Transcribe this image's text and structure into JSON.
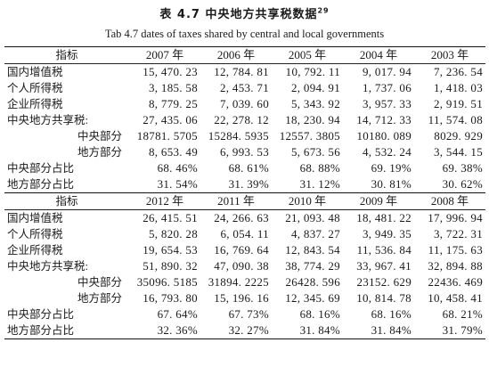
{
  "title_cn": "表 4.7  中央地方共享税数据",
  "title_cn_sup": "29",
  "title_en": "Tab 4.7 dates of taxes shared by central and local governments",
  "block1": {
    "header": {
      "label": "指标",
      "years": [
        "2007 年",
        "2006 年",
        "2005 年",
        "2004 年",
        "2003 年"
      ]
    },
    "rows": [
      {
        "label": "国内增值税",
        "values": [
          "15, 470. 23",
          "12, 784. 81",
          "10, 792. 11",
          "9, 017. 94",
          "7, 236. 54"
        ]
      },
      {
        "label": "个人所得税",
        "values": [
          "3, 185. 58",
          "2, 453. 71",
          "2, 094. 91",
          "1, 737. 06",
          "1, 418. 03"
        ]
      },
      {
        "label": "企业所得税",
        "values": [
          "8, 779. 25",
          "7, 039. 60",
          "5, 343. 92",
          "3, 957. 33",
          "2, 919. 51"
        ]
      },
      {
        "label": "中央地方共享税:",
        "values": [
          "27, 435. 06",
          "22, 278. 12",
          "18, 230. 94",
          "14, 712. 33",
          "11, 574. 08"
        ]
      },
      {
        "label": "中央部分",
        "values": [
          "18781. 5705",
          "15284. 5935",
          "12557. 3805",
          "10180. 089",
          "8029. 929"
        ]
      },
      {
        "label": "地方部分",
        "values": [
          "8, 653. 49",
          "6, 993. 53",
          "5, 673. 56",
          "4, 532. 24",
          "3, 544. 15"
        ]
      },
      {
        "label": "中央部分占比",
        "values": [
          "68. 46%",
          "68. 61%",
          "68. 88%",
          "69. 19%",
          "69. 38%"
        ]
      },
      {
        "label": "地方部分占比",
        "values": [
          "31. 54%",
          "31. 39%",
          "31. 12%",
          "30. 81%",
          "30. 62%"
        ]
      }
    ]
  },
  "block2": {
    "header": {
      "label": "指标",
      "years": [
        "2012 年",
        "2011 年",
        "2010 年",
        "2009 年",
        "2008 年"
      ]
    },
    "rows": [
      {
        "label": "国内增值税",
        "values": [
          "26, 415. 51",
          "24, 266. 63",
          "21, 093. 48",
          "18, 481. 22",
          "17, 996. 94"
        ]
      },
      {
        "label": "个人所得税",
        "values": [
          "5, 820. 28",
          "6, 054. 11",
          "4, 837. 27",
          "3, 949. 35",
          "3, 722. 31"
        ]
      },
      {
        "label": "企业所得税",
        "values": [
          "19, 654. 53",
          "16, 769. 64",
          "12, 843. 54",
          "11, 536. 84",
          "11, 175. 63"
        ]
      },
      {
        "label": "中央地方共享税:",
        "values": [
          "51, 890. 32",
          "47, 090. 38",
          "38, 774. 29",
          "33, 967. 41",
          "32, 894. 88"
        ]
      },
      {
        "label": "中央部分",
        "values": [
          "35096. 5185",
          "31894. 2225",
          "26428. 596",
          "23152. 629",
          "22436. 469"
        ]
      },
      {
        "label": "地方部分",
        "values": [
          "16, 793. 80",
          "15, 196. 16",
          "12, 345. 69",
          "10, 814. 78",
          "10, 458. 41"
        ]
      },
      {
        "label": "中央部分占比",
        "values": [
          "67. 64%",
          "67. 73%",
          "68. 16%",
          "68. 16%",
          "68. 21%"
        ]
      },
      {
        "label": "地方部分占比",
        "values": [
          "32. 36%",
          "32. 27%",
          "31. 84%",
          "31. 84%",
          "31. 79%"
        ]
      }
    ]
  }
}
